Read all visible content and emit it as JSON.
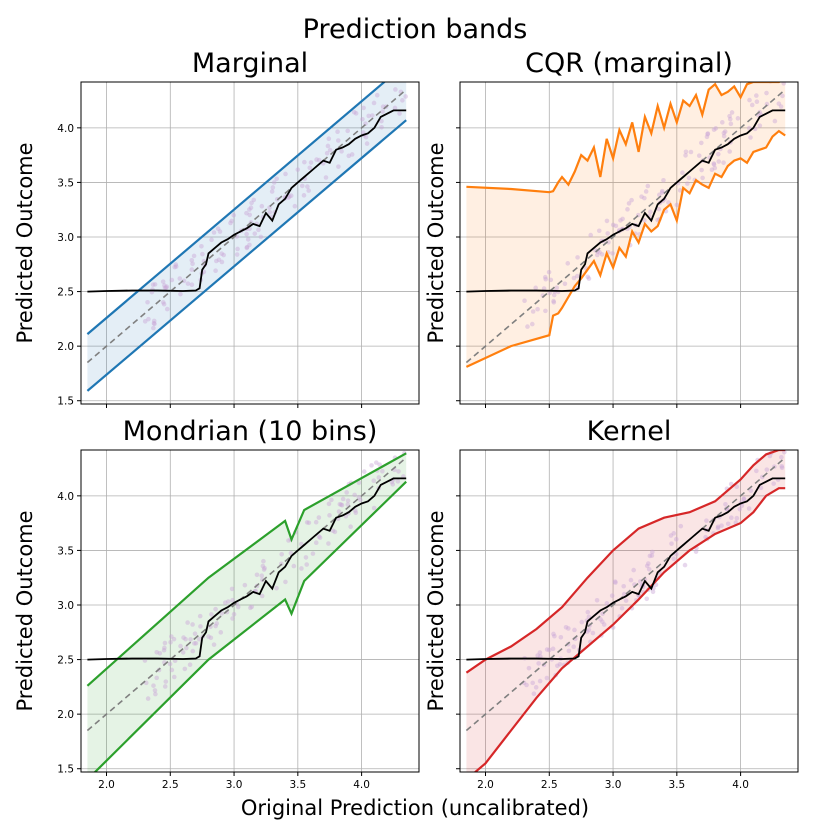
{
  "figure": {
    "suptitle": "Prediction bands",
    "xlabel": "Original Prediction (uncalibrated)",
    "ylabel": "Predicted Outcome"
  },
  "chart_data": [
    {
      "type": "line",
      "title": "Marginal",
      "xlabel": "",
      "ylabel": "Predicted Outcome",
      "xlim": [
        1.8,
        4.45
      ],
      "ylim": [
        1.47,
        4.42
      ],
      "xticks": [
        2.0,
        2.5,
        3.0,
        3.5,
        4.0
      ],
      "yticks": [
        1.5,
        2.0,
        2.5,
        3.0,
        3.5,
        4.0
      ],
      "xticklabels_visible": false,
      "grid": true,
      "band_color": "#1f77b4",
      "band": {
        "x": [
          1.85,
          4.35
        ],
        "lower": [
          1.59,
          4.07
        ],
        "upper": [
          2.11,
          4.59
        ]
      }
    },
    {
      "type": "line",
      "title": "CQR (marginal)",
      "xlabel": "",
      "ylabel": "Predicted Outcome",
      "xlim": [
        1.8,
        4.45
      ],
      "ylim": [
        1.47,
        4.42
      ],
      "xticks": [
        2.0,
        2.5,
        3.0,
        3.5,
        4.0
      ],
      "yticks": [
        1.5,
        2.0,
        2.5,
        3.0,
        3.5,
        4.0
      ],
      "xticklabels_visible": false,
      "grid": true,
      "band_color": "#ff7f0e",
      "band": {
        "x": [
          1.85,
          2.2,
          2.5,
          2.53,
          2.57,
          2.6,
          2.65,
          2.7,
          2.75,
          2.8,
          2.85,
          2.9,
          2.95,
          3.0,
          3.05,
          3.1,
          3.15,
          3.2,
          3.25,
          3.3,
          3.35,
          3.4,
          3.45,
          3.5,
          3.55,
          3.6,
          3.65,
          3.7,
          3.75,
          3.8,
          3.85,
          3.9,
          3.95,
          4.0,
          4.05,
          4.1,
          4.15,
          4.2,
          4.25,
          4.3,
          4.35
        ],
        "lower": [
          1.81,
          2.0,
          2.1,
          2.28,
          2.3,
          2.35,
          2.45,
          2.55,
          2.62,
          2.7,
          2.78,
          2.65,
          2.85,
          2.72,
          2.9,
          2.82,
          3.05,
          2.95,
          3.12,
          3.05,
          3.1,
          3.25,
          3.3,
          3.15,
          3.45,
          3.4,
          3.52,
          3.48,
          3.45,
          3.58,
          3.55,
          3.65,
          3.7,
          3.72,
          3.68,
          3.78,
          3.8,
          3.82,
          3.92,
          3.97,
          3.93
        ],
        "upper": [
          3.46,
          3.44,
          3.41,
          3.42,
          3.5,
          3.55,
          3.48,
          3.6,
          3.75,
          3.7,
          3.82,
          3.55,
          3.9,
          3.72,
          3.98,
          3.85,
          4.05,
          3.78,
          4.1,
          3.95,
          4.2,
          4.0,
          4.22,
          4.05,
          4.25,
          4.2,
          4.3,
          4.12,
          4.35,
          4.4,
          4.3,
          4.33,
          4.38,
          4.28,
          4.4,
          4.42,
          4.42,
          4.42,
          4.42,
          4.42,
          4.45
        ]
      }
    },
    {
      "type": "line",
      "title": "Mondrian (10 bins)",
      "xlabel": "",
      "ylabel": "Predicted Outcome",
      "xlim": [
        1.8,
        4.45
      ],
      "ylim": [
        1.47,
        4.42
      ],
      "xticks": [
        2.0,
        2.5,
        3.0,
        3.5,
        4.0
      ],
      "yticks": [
        1.5,
        2.0,
        2.5,
        3.0,
        3.5,
        4.0
      ],
      "xticklabels_visible": true,
      "grid": true,
      "band_color": "#2ca02c",
      "band": {
        "x": [
          1.85,
          2.8,
          3.4,
          3.45,
          3.55,
          4.35
        ],
        "lower": [
          1.4,
          2.5,
          3.05,
          2.92,
          3.22,
          4.13
        ],
        "upper": [
          2.26,
          3.25,
          3.77,
          3.6,
          3.87,
          4.39
        ]
      }
    },
    {
      "type": "line",
      "title": "Kernel",
      "xlabel": "",
      "ylabel": "Predicted Outcome",
      "xlim": [
        1.8,
        4.45
      ],
      "ylim": [
        1.47,
        4.42
      ],
      "xticks": [
        2.0,
        2.5,
        3.0,
        3.5,
        4.0
      ],
      "yticks": [
        1.5,
        2.0,
        2.5,
        3.0,
        3.5,
        4.0
      ],
      "xticklabels_visible": true,
      "grid": true,
      "band_color": "#d62728",
      "band": {
        "x": [
          1.85,
          2.0,
          2.2,
          2.4,
          2.6,
          2.8,
          3.0,
          3.2,
          3.4,
          3.6,
          3.8,
          4.0,
          4.1,
          4.2,
          4.3,
          4.35
        ],
        "lower": [
          1.4,
          1.55,
          1.85,
          2.15,
          2.42,
          2.62,
          2.82,
          3.05,
          3.3,
          3.5,
          3.65,
          3.75,
          3.85,
          4.0,
          4.07,
          4.07
        ],
        "upper": [
          2.38,
          2.5,
          2.62,
          2.78,
          2.98,
          3.25,
          3.5,
          3.7,
          3.8,
          3.85,
          3.95,
          4.15,
          4.28,
          4.38,
          4.42,
          4.42
        ]
      }
    }
  ],
  "shared_series": {
    "identity": {
      "x": [
        1.85,
        4.35
      ],
      "y": [
        1.85,
        4.35
      ],
      "color": "#808080",
      "dashed": true
    },
    "calibrated": {
      "color": "#000000",
      "x": [
        1.85,
        2.0,
        2.2,
        2.4,
        2.6,
        2.7,
        2.73,
        2.75,
        2.78,
        2.8,
        2.85,
        2.9,
        2.95,
        3.0,
        3.05,
        3.1,
        3.15,
        3.2,
        3.25,
        3.3,
        3.35,
        3.4,
        3.45,
        3.5,
        3.55,
        3.6,
        3.65,
        3.7,
        3.75,
        3.8,
        3.85,
        3.9,
        3.95,
        4.0,
        4.05,
        4.1,
        4.15,
        4.2,
        4.25,
        4.3,
        4.35
      ],
      "y": [
        2.5,
        2.505,
        2.51,
        2.51,
        2.505,
        2.51,
        2.53,
        2.7,
        2.75,
        2.85,
        2.9,
        2.95,
        2.98,
        3.02,
        3.05,
        3.08,
        3.12,
        3.1,
        3.22,
        3.15,
        3.3,
        3.35,
        3.45,
        3.5,
        3.55,
        3.6,
        3.65,
        3.7,
        3.68,
        3.8,
        3.82,
        3.85,
        3.9,
        3.93,
        3.95,
        4.0,
        4.1,
        4.13,
        4.16,
        4.16,
        4.16
      ]
    },
    "scatter_color": "#c9a6d6"
  }
}
